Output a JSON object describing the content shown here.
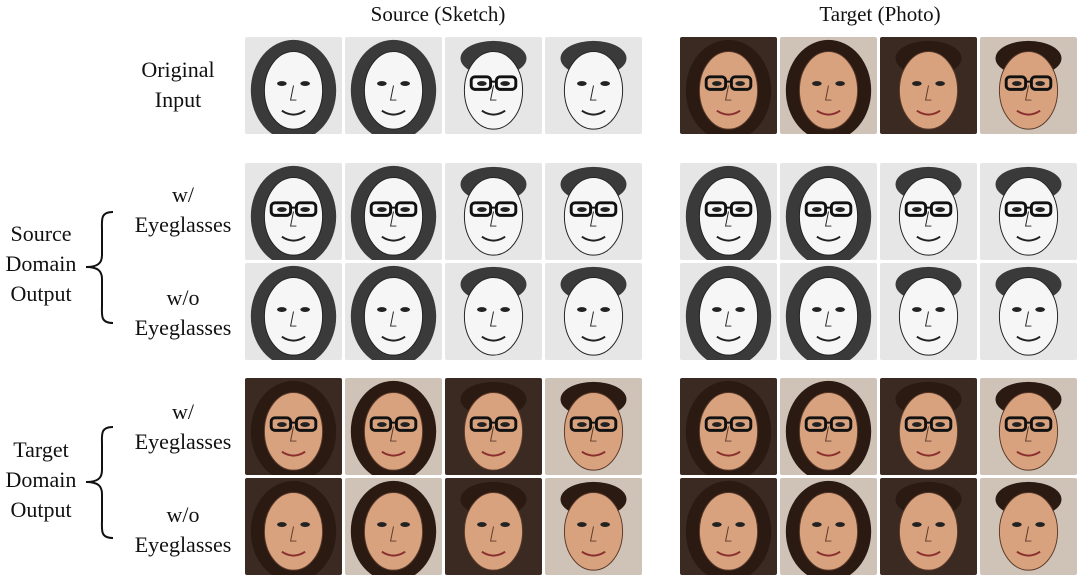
{
  "headers": {
    "source": "Source (Sketch)",
    "target": "Target (Photo)"
  },
  "row_labels": {
    "original": [
      "Original",
      "Input"
    ],
    "with_glasses": [
      "w/",
      "Eyeglasses"
    ],
    "without_glasses": [
      "w/o",
      "Eyeglasses"
    ]
  },
  "domain_labels": {
    "source": [
      "Source",
      "Domain",
      "Output"
    ],
    "target": [
      "Target",
      "Domain",
      "Output"
    ]
  },
  "faces": {
    "source_ids": [
      "sketch-woman-1",
      "sketch-woman-2",
      "sketch-man-1",
      "sketch-man-2"
    ],
    "target_ids": [
      "photo-woman-1",
      "photo-woman-2",
      "photo-man-1",
      "photo-man-2"
    ]
  },
  "colors": {
    "sketch_bg": "#e6e6e6",
    "photo_bg_dark": "#3a2a22",
    "skin": "#d9a27e",
    "hair_dark": "#2a1a12"
  }
}
